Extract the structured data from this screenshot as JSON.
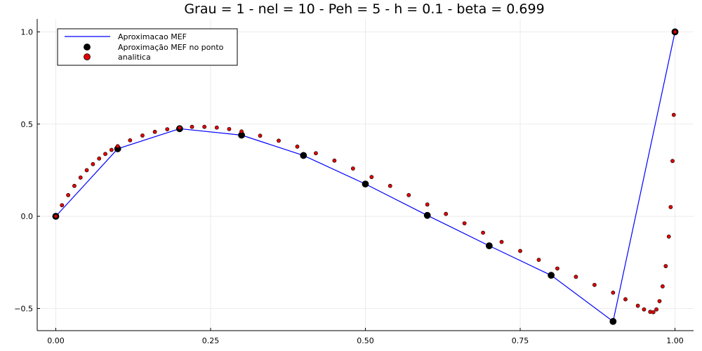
{
  "chart_data": {
    "type": "line",
    "title": "Grau = 1 - nel = 10 - Peh = 5 - h = 0.1 - beta = 0.699",
    "xlabel": "",
    "ylabel": "",
    "xlim": [
      -0.03,
      1.03
    ],
    "ylim": [
      -0.62,
      1.07
    ],
    "xticks": [
      0.0,
      0.25,
      0.5,
      0.75,
      1.0
    ],
    "xtick_labels": [
      "0.00",
      "0.25",
      "0.50",
      "0.75",
      "1.00"
    ],
    "yticks": [
      -0.5,
      0.0,
      0.5,
      1.0
    ],
    "ytick_labels": [
      "−0.5",
      "0.0",
      "0.5",
      "1.0"
    ],
    "grid": true,
    "legend_position": "top-left",
    "series": [
      {
        "name": "Aproximacao MEF",
        "kind": "line",
        "color": "#0000ff",
        "x": [
          0.0,
          0.1,
          0.2,
          0.3,
          0.4,
          0.5,
          0.6,
          0.7,
          0.8,
          0.9,
          1.0
        ],
        "y": [
          0.0,
          0.366,
          0.475,
          0.44,
          0.33,
          0.175,
          0.005,
          -0.16,
          -0.32,
          -0.57,
          1.0
        ]
      },
      {
        "name": "Aproximação MEF no ponto",
        "kind": "scatter",
        "color": "#000000",
        "x": [
          0.0,
          0.1,
          0.2,
          0.3,
          0.4,
          0.5,
          0.6,
          0.7,
          0.8,
          0.9,
          1.0
        ],
        "y": [
          0.0,
          0.366,
          0.475,
          0.44,
          0.33,
          0.175,
          0.005,
          -0.16,
          -0.32,
          -0.57,
          1.0
        ]
      },
      {
        "name": "analitica",
        "kind": "scatter",
        "color": "#e00000",
        "x": [
          0.0,
          0.01,
          0.02,
          0.03,
          0.04,
          0.05,
          0.06,
          0.07,
          0.08,
          0.09,
          0.1,
          0.12,
          0.14,
          0.16,
          0.18,
          0.2,
          0.22,
          0.24,
          0.26,
          0.28,
          0.3,
          0.33,
          0.36,
          0.39,
          0.42,
          0.45,
          0.48,
          0.51,
          0.54,
          0.57,
          0.6,
          0.63,
          0.66,
          0.69,
          0.72,
          0.75,
          0.78,
          0.81,
          0.84,
          0.87,
          0.9,
          0.92,
          0.94,
          0.95,
          0.96,
          0.965,
          0.97,
          0.975,
          0.98,
          0.985,
          0.99,
          0.993,
          0.996,
          0.998,
          1.0
        ],
        "y": [
          0.0,
          0.06,
          0.115,
          0.165,
          0.21,
          0.25,
          0.283,
          0.313,
          0.338,
          0.36,
          0.38,
          0.412,
          0.438,
          0.458,
          0.472,
          0.48,
          0.485,
          0.485,
          0.481,
          0.473,
          0.46,
          0.437,
          0.41,
          0.378,
          0.342,
          0.302,
          0.259,
          0.213,
          0.165,
          0.115,
          0.064,
          0.013,
          -0.038,
          -0.089,
          -0.139,
          -0.188,
          -0.236,
          -0.283,
          -0.328,
          -0.372,
          -0.414,
          -0.45,
          -0.485,
          -0.505,
          -0.518,
          -0.52,
          -0.505,
          -0.46,
          -0.38,
          -0.27,
          -0.11,
          0.05,
          0.3,
          0.55,
          1.0
        ]
      }
    ]
  }
}
